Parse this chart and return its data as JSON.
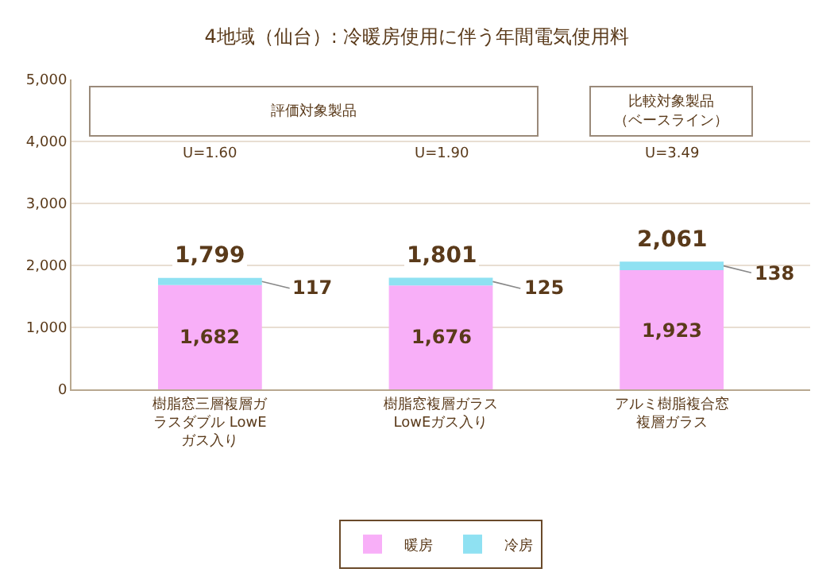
{
  "chart_data": {
    "type": "bar",
    "stacked": true,
    "title": "4地域（仙台）: 冷暖房使用に伴う年間電気使用料",
    "categories": [
      "樹脂窓三層複層ガラスダブル LowEガス入り",
      "樹脂窓複層ガラスLowEガス入り",
      "アルミ樹脂複合窓複層ガラス"
    ],
    "series": [
      {
        "name": "暖房",
        "color": "#f8aff8",
        "values": [
          1682,
          1676,
          1923
        ],
        "value_labels": [
          "1,682",
          "1,676",
          "1,923"
        ]
      },
      {
        "name": "冷房",
        "color": "#8fe1f2",
        "values": [
          117,
          125,
          138
        ],
        "value_labels": [
          "117",
          "125",
          "138"
        ]
      }
    ],
    "totals": [
      "1,799",
      "1,801",
      "2,061"
    ],
    "annotations": [
      "評価対象製品",
      "比較対象製品（ベースライン）",
      "U=1.60",
      "U=1.90",
      "U=3.49"
    ],
    "ylim": [
      0,
      5000
    ],
    "yticks": [
      0,
      {
        "value": 1000,
        "label": "1,000"
      },
      {
        "value": 2000,
        "label": "2,000"
      },
      {
        "value": 3000,
        "label": "3,000"
      },
      {
        "value": 4000,
        "label": "4,000"
      },
      {
        "value": 5000,
        "label": "5,000"
      }
    ],
    "grid": "y",
    "legend": "bottom"
  }
}
